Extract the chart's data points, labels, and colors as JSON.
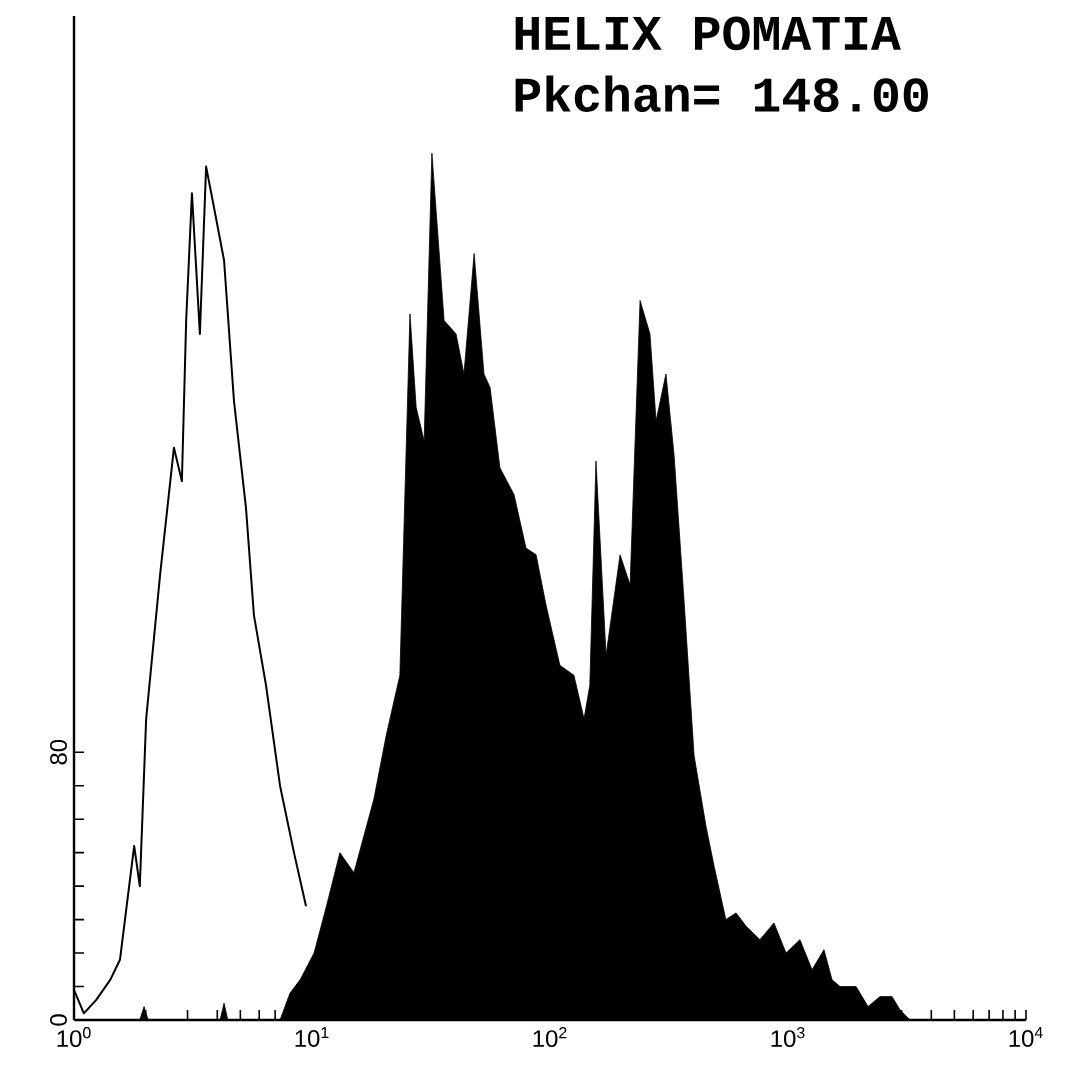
{
  "chart_data": {
    "type": "area",
    "title": "HELIX POMATIA",
    "subtitle": "Pkchan= 148.00",
    "log": "x",
    "xlim": [
      1,
      10000
    ],
    "xticks": [
      {
        "value": 1,
        "label": "10$^{0}$"
      },
      {
        "value": 2,
        "label": null
      },
      {
        "value": 3,
        "label": null
      },
      {
        "value": 4,
        "label": null
      },
      {
        "value": 5,
        "label": null
      },
      {
        "value": 6,
        "label": null
      },
      {
        "value": 7,
        "label": null
      },
      {
        "value": 8,
        "label": null
      },
      {
        "value": 9,
        "label": null
      },
      {
        "value": 10,
        "label": "10$^{1}$"
      },
      {
        "value": 20,
        "label": null
      },
      {
        "value": 30,
        "label": null
      },
      {
        "value": 40,
        "label": null
      },
      {
        "value": 50,
        "label": null
      },
      {
        "value": 60,
        "label": null
      },
      {
        "value": 70,
        "label": null
      },
      {
        "value": 80,
        "label": null
      },
      {
        "value": 90,
        "label": null
      },
      {
        "value": 100,
        "label": "10$^{2}$"
      },
      {
        "value": 200,
        "label": null
      },
      {
        "value": 300,
        "label": null
      },
      {
        "value": 400,
        "label": null
      },
      {
        "value": 500,
        "label": null
      },
      {
        "value": 600,
        "label": null
      },
      {
        "value": 700,
        "label": null
      },
      {
        "value": 800,
        "label": null
      },
      {
        "value": 900,
        "label": null
      },
      {
        "value": 1000,
        "label": "10$^{3}$"
      },
      {
        "value": 2000,
        "label": null
      },
      {
        "value": 3000,
        "label": null
      },
      {
        "value": 4000,
        "label": null
      },
      {
        "value": 5000,
        "label": null
      },
      {
        "value": 6000,
        "label": null
      },
      {
        "value": 7000,
        "label": null
      },
      {
        "value": 8000,
        "label": null
      },
      {
        "value": 9000,
        "label": null
      },
      {
        "value": 10000,
        "label": "10$^{4}$"
      }
    ],
    "ylim": [
      0,
      300
    ],
    "yticks": [
      0,
      {
        "value": 10,
        "label": null
      },
      {
        "value": 20,
        "label": null
      },
      {
        "value": 30,
        "label": null
      },
      {
        "value": 40,
        "label": null
      },
      {
        "value": 50,
        "label": null
      },
      {
        "value": 60,
        "label": null
      },
      {
        "value": 70,
        "label": null
      },
      80
    ],
    "series": [
      {
        "type": "line",
        "color": "#000000",
        "x": [
          1,
          1.1,
          1.24,
          1.42,
          1.56,
          1.79,
          1.89,
          2.01,
          2.3,
          2.63,
          2.84,
          2.96,
          3.13,
          3.38,
          3.59,
          3.87,
          4.27,
          4.7,
          5.28,
          5.7,
          6.41,
          7.34,
          8.4,
          9.44
        ],
        "values": [
          9,
          2,
          6,
          12,
          18,
          52,
          40,
          90,
          133,
          171,
          161,
          209,
          247,
          205,
          255,
          243,
          227,
          185,
          153,
          121,
          100,
          70,
          50,
          34
        ]
      },
      {
        "type": "area",
        "color": "#000000",
        "x": [
          1.89,
          1.97,
          2.05,
          4.11,
          4.27,
          4.43,
          7.34,
          8.08,
          8.91,
          10.2,
          11.5,
          13.1,
          15,
          18.2,
          20.5,
          23.4,
          25.8,
          27.4,
          29.6,
          31.9,
          35.9,
          40.3,
          43.5,
          48,
          52.8,
          56,
          61.6,
          70.6,
          79.3,
          87.4,
          96.2,
          110,
          126,
          139,
          147,
          156,
          172,
          197,
          217,
          239,
          263,
          279,
          307,
          332,
          366,
          403,
          452,
          489,
          548,
          605,
          667,
          762,
          873,
          981,
          1122,
          1262,
          1416,
          1531,
          1653,
          1932,
          2169,
          2437,
          2735,
          2958,
          3258
        ],
        "values": [
          0,
          4,
          0,
          0,
          5,
          0,
          0,
          8,
          12,
          20,
          34,
          50,
          44,
          66,
          85,
          103,
          211,
          183,
          173,
          259,
          209,
          205,
          193,
          229,
          193,
          189,
          165,
          157,
          141,
          139,
          124,
          106,
          103,
          90,
          100,
          167,
          109,
          139,
          130,
          215,
          205,
          179,
          193,
          169,
          125,
          79,
          58,
          46,
          30,
          32,
          28,
          24,
          29,
          20,
          24,
          15,
          21,
          12,
          10,
          10,
          4,
          7,
          7,
          3,
          0
        ]
      }
    ]
  }
}
